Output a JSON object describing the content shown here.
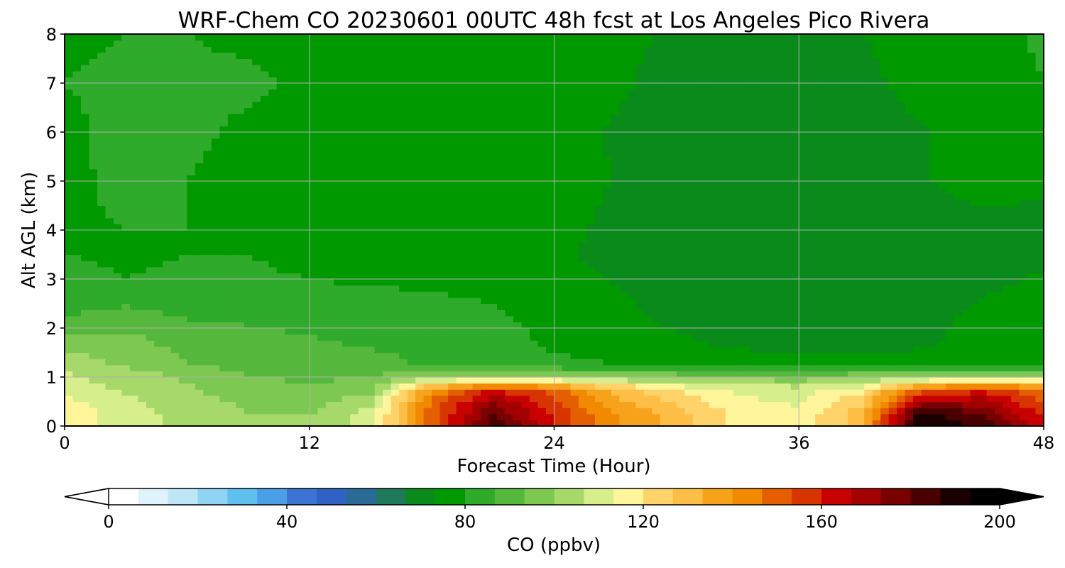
{
  "chart_data": {
    "type": "heatmap",
    "title": "WRF-Chem CO  20230601 00UTC 48h fcst at Los Angeles Pico Rivera",
    "xlabel": "Forecast Time (Hour)",
    "ylabel": "Alt AGL (km)",
    "xlim": [
      0,
      48
    ],
    "ylim": [
      0,
      8
    ],
    "x_ticks": [
      0,
      12,
      24,
      36,
      48
    ],
    "y_ticks": [
      0,
      1,
      2,
      3,
      4,
      5,
      6,
      7,
      8
    ],
    "grid": true,
    "x": [
      0,
      3,
      6,
      9,
      12,
      15,
      18,
      21,
      24,
      27,
      30,
      33,
      36,
      39,
      42,
      45,
      48
    ],
    "y": [
      0,
      0.25,
      0.5,
      0.75,
      1,
      1.25,
      1.5,
      1.75,
      2,
      2.5,
      3,
      3.5,
      4,
      5,
      6,
      7,
      8
    ],
    "z": [
      [
        118,
        110,
        104,
        100,
        100,
        110,
        150,
        185,
        160,
        140,
        130,
        118,
        115,
        130,
        195,
        185,
        160
      ],
      [
        118,
        110,
        104,
        100,
        100,
        110,
        150,
        180,
        158,
        140,
        130,
        118,
        115,
        130,
        190,
        180,
        158
      ],
      [
        115,
        108,
        103,
        99,
        97,
        105,
        148,
        172,
        155,
        135,
        125,
        115,
        112,
        125,
        170,
        170,
        152
      ],
      [
        110,
        106,
        101,
        96,
        94,
        98,
        140,
        160,
        150,
        130,
        120,
        112,
        110,
        118,
        150,
        158,
        148
      ],
      [
        108,
        104,
        99,
        94,
        92,
        94,
        100,
        103,
        102,
        100,
        98,
        97,
        96,
        99,
        100,
        103,
        106
      ],
      [
        104,
        99,
        94,
        91,
        89,
        88,
        86,
        84,
        82,
        80,
        79,
        78,
        78,
        78,
        78,
        78,
        78
      ],
      [
        100,
        98,
        92,
        90,
        88,
        87,
        86,
        84,
        80,
        78,
        76,
        74,
        73,
        73,
        74,
        76,
        78
      ],
      [
        95,
        96,
        90,
        88,
        87,
        86,
        86,
        84,
        78,
        76,
        74,
        72,
        71,
        71,
        72,
        76,
        77
      ],
      [
        90,
        92,
        88,
        87,
        86,
        86,
        85,
        83,
        77,
        75,
        73,
        71,
        70,
        70,
        71,
        76,
        77
      ],
      [
        84,
        86,
        84,
        84,
        83,
        83,
        82,
        80,
        76,
        74,
        72,
        70,
        69,
        69,
        70,
        74,
        76
      ],
      [
        82,
        80,
        81,
        82,
        80,
        79,
        78,
        77,
        75,
        73,
        71,
        69,
        68,
        69,
        70,
        72,
        74
      ],
      [
        80,
        79,
        80,
        80,
        77,
        76,
        76,
        76,
        74,
        72,
        70,
        69,
        68,
        69,
        70,
        71,
        72
      ],
      [
        79,
        80,
        80,
        78,
        76,
        76,
        77,
        77,
        75,
        72,
        71,
        70,
        69,
        70,
        71,
        72,
        72
      ],
      [
        78,
        82,
        80,
        78,
        76,
        76,
        78,
        78,
        76,
        73,
        71,
        70,
        70,
        71,
        73,
        75,
        74
      ],
      [
        78,
        83,
        81,
        79,
        78,
        77,
        77,
        77,
        75,
        73,
        71,
        70,
        70,
        71,
        73,
        76,
        77
      ],
      [
        80,
        82,
        81,
        81,
        79,
        77,
        76,
        76,
        75,
        74,
        72,
        71,
        71,
        72,
        75,
        77,
        80
      ],
      [
        78,
        80,
        80,
        79,
        78,
        77,
        76,
        75,
        75,
        74,
        73,
        72,
        73,
        73,
        76,
        78,
        81
      ]
    ],
    "colorbar": {
      "label": "CO  (ppbv)",
      "min": 0,
      "max": 200,
      "ticks": [
        0,
        40,
        80,
        120,
        160,
        200
      ],
      "extend": "both",
      "colors": [
        "#ffffff",
        "#e0f2fb",
        "#bde6f7",
        "#8fd4f2",
        "#5ec0ef",
        "#4a9fe6",
        "#3b74d2",
        "#3062c4",
        "#2a6a96",
        "#1f7a5c",
        "#0a8a1a",
        "#009900",
        "#2faa2a",
        "#55b83c",
        "#7dc850",
        "#a6d86a",
        "#d7ee8c",
        "#fff59a",
        "#ffd36a",
        "#ffbe46",
        "#f7a21b",
        "#f28a00",
        "#e55e00",
        "#d83400",
        "#c80000",
        "#a30000",
        "#7a0000",
        "#4a0000",
        "#1a0000",
        "#000000"
      ]
    }
  }
}
